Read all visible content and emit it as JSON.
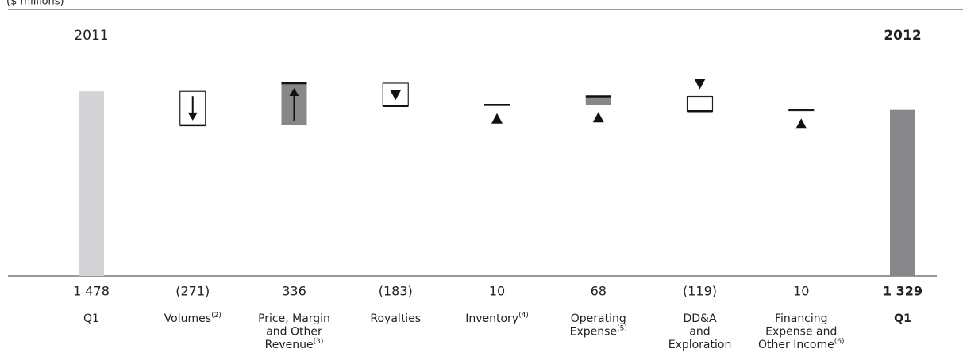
{
  "chart_data": {
    "type": "waterfall",
    "unit_note": "($ millions)",
    "start_label": "2011",
    "end_label": "2012",
    "categories": [
      {
        "lines": [
          "Q1"
        ]
      },
      {
        "lines": [
          "Volumes"
        ],
        "note": "(2)"
      },
      {
        "lines": [
          "Price, Margin",
          "and Other",
          "Revenue"
        ],
        "note": "(3)"
      },
      {
        "lines": [
          "Royalties"
        ]
      },
      {
        "lines": [
          "Inventory"
        ],
        "note": "(4)"
      },
      {
        "lines": [
          "Operating",
          "Expense"
        ],
        "note": "(5)"
      },
      {
        "lines": [
          "DD&A",
          "and",
          "Exploration"
        ]
      },
      {
        "lines": [
          "Financing",
          "Expense and",
          "Other Income"
        ],
        "note": "(6)"
      },
      {
        "lines": [
          "Q1"
        ]
      }
    ],
    "values": [
      1478,
      -271,
      336,
      -183,
      10,
      68,
      -119,
      10,
      1329
    ],
    "value_labels": [
      "1 478",
      "(271)",
      "336",
      "(183)",
      "10",
      "68",
      "(119)",
      "10",
      "1 329"
    ],
    "colors": {
      "start": "#d3d3d5",
      "end": "#87878a",
      "increase": "#87878a",
      "decrease": "#ffffff"
    },
    "ylim": [
      0,
      1600
    ]
  }
}
